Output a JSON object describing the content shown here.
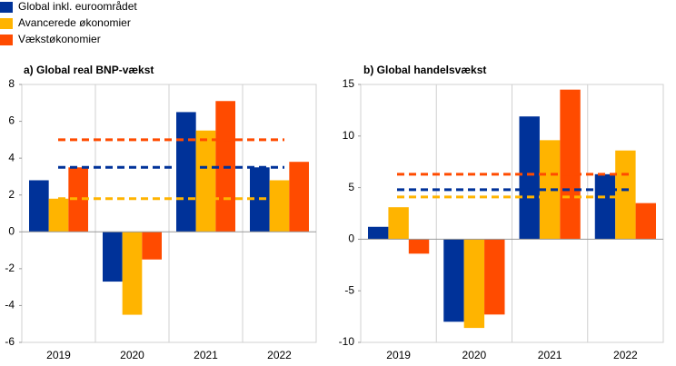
{
  "legend_title_free": true,
  "chart_data": [
    {
      "type": "bar",
      "title": "a) Global real BNP-vækst",
      "categories": [
        "2019",
        "2020",
        "2021",
        "2022"
      ],
      "series": [
        {
          "name": "Global inkl. euroområdet",
          "color": "#003299",
          "values": [
            2.8,
            -2.7,
            6.5,
            3.5
          ],
          "average": 3.5
        },
        {
          "name": "Avancerede økonomier",
          "color": "#ffb400",
          "values": [
            1.8,
            -4.5,
            5.5,
            2.8
          ],
          "average": 1.8
        },
        {
          "name": "Vækstøkonomier",
          "color": "#ff4b00",
          "values": [
            3.5,
            -1.5,
            7.1,
            3.8
          ],
          "average": 5.0
        }
      ],
      "ylim": [
        -6,
        8
      ],
      "yticks": [
        -6,
        -4,
        -2,
        0,
        2,
        4,
        6,
        8
      ]
    },
    {
      "type": "bar",
      "title": "b) Global handelsvækst",
      "categories": [
        "2019",
        "2020",
        "2021",
        "2022"
      ],
      "series": [
        {
          "color": "#003299",
          "values": [
            1.2,
            -8.0,
            11.9,
            6.3
          ],
          "average": 4.8
        },
        {
          "color": "#ffb400",
          "values": [
            3.1,
            -8.6,
            9.6,
            8.6
          ],
          "average": 4.1
        },
        {
          "color": "#ff4b00",
          "values": [
            -1.4,
            -7.3,
            14.5,
            3.5
          ],
          "average": 6.3
        }
      ],
      "ylim": [
        -10,
        15
      ],
      "yticks": [
        -10,
        -5,
        0,
        5,
        10,
        15
      ]
    }
  ]
}
